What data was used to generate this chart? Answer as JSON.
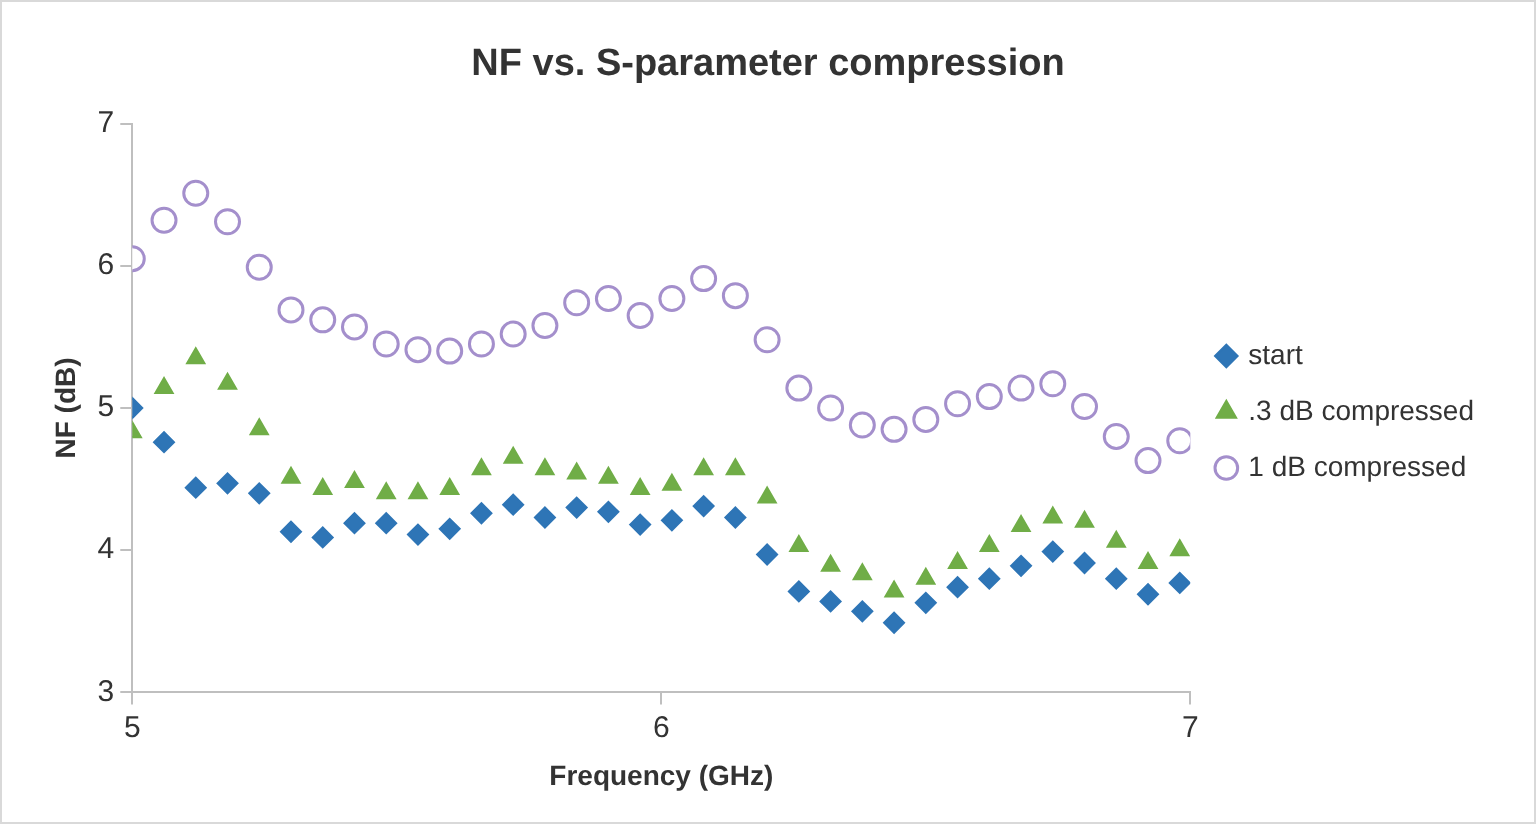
{
  "chart_data": {
    "type": "scatter",
    "title": "NF vs. S-parameter compression",
    "xlabel": "Frequency (GHz)",
    "ylabel": "NF (dB)",
    "x": [
      5,
      5.06,
      5.12,
      5.18,
      5.24,
      5.3,
      5.36,
      5.42,
      5.48,
      5.54,
      5.6,
      5.66,
      5.72,
      5.78,
      5.84,
      5.9,
      5.96,
      6.02,
      6.08,
      6.14,
      6.2,
      6.26,
      6.32,
      6.38,
      6.44,
      6.5,
      6.56,
      6.62,
      6.68,
      6.74,
      6.8,
      6.86,
      6.92,
      6.98
    ],
    "series": [
      {
        "name": "start",
        "color": "#2e75b6",
        "marker": "diamond",
        "values": [
          5.0,
          4.76,
          4.44,
          4.47,
          4.4,
          4.13,
          4.09,
          4.19,
          4.19,
          4.11,
          4.15,
          4.26,
          4.32,
          4.23,
          4.3,
          4.27,
          4.18,
          4.21,
          4.31,
          4.23,
          3.97,
          3.71,
          3.64,
          3.57,
          3.49,
          3.63,
          3.74,
          3.8,
          3.89,
          3.99,
          3.91,
          3.8,
          3.69,
          3.77
        ]
      },
      {
        "name": ".3 dB compressed",
        "color": "#70ad47",
        "marker": "triangle",
        "values": [
          4.83,
          5.14,
          5.35,
          5.17,
          4.85,
          4.51,
          4.43,
          4.48,
          4.4,
          4.4,
          4.43,
          4.57,
          4.65,
          4.57,
          4.54,
          4.51,
          4.43,
          4.46,
          4.57,
          4.57,
          4.37,
          4.03,
          3.89,
          3.83,
          3.71,
          3.8,
          3.91,
          4.03,
          4.17,
          4.23,
          4.2,
          4.06,
          3.91,
          4.0
        ]
      },
      {
        "name": "1 dB compressed",
        "color": "#a48fcc",
        "marker": "circle",
        "values": [
          6.05,
          6.32,
          6.51,
          6.31,
          5.99,
          5.69,
          5.62,
          5.57,
          5.45,
          5.41,
          5.4,
          5.45,
          5.52,
          5.58,
          5.74,
          5.77,
          5.65,
          5.77,
          5.91,
          5.79,
          5.48,
          5.14,
          5.0,
          4.88,
          4.85,
          4.92,
          5.03,
          5.08,
          5.14,
          5.17,
          5.01,
          4.8,
          4.63,
          4.77
        ]
      }
    ],
    "xlim": [
      5,
      7
    ],
    "xticks": [
      5,
      6,
      7
    ],
    "ylim": [
      3,
      7
    ],
    "yticks": [
      3,
      4,
      5,
      6,
      7
    ],
    "grid": false,
    "legend": "right"
  }
}
